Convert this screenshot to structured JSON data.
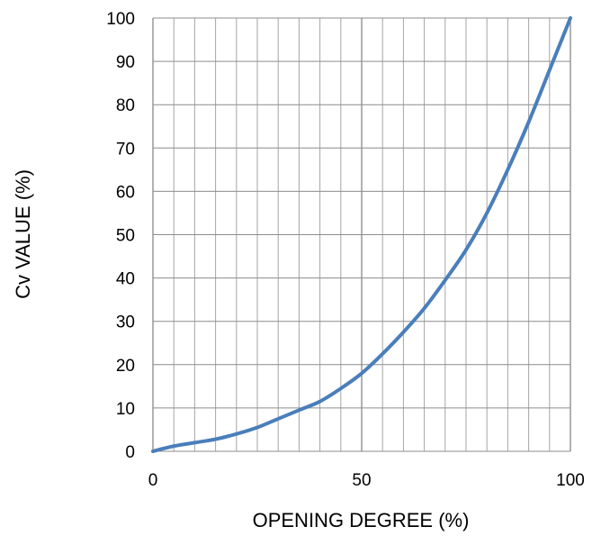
{
  "chart_data": {
    "type": "line",
    "title": "",
    "xlabel": "OPENING DEGREE  (%)",
    "ylabel": "Cv VALUE  (%)",
    "xlim": [
      0,
      100
    ],
    "ylim": [
      0,
      100
    ],
    "x_ticks": [
      0,
      50,
      100
    ],
    "y_ticks": [
      0,
      10,
      20,
      30,
      40,
      50,
      60,
      70,
      80,
      90,
      100
    ],
    "minor_grid_x_step": 5,
    "major_grid_x_step": 50,
    "grid_y_step": 10,
    "grid": true,
    "legend": "none",
    "series": [
      {
        "color": "#4a7ebb",
        "x": [
          0,
          5,
          10,
          15,
          20,
          25,
          30,
          35,
          40,
          45,
          50,
          55,
          60,
          65,
          70,
          75,
          80,
          85,
          90,
          95,
          100
        ],
        "y": [
          0,
          1.2,
          2,
          2.8,
          4,
          5.5,
          7.5,
          9.5,
          11.5,
          14.5,
          18,
          22.5,
          27.5,
          33,
          39.5,
          46.5,
          55,
          65,
          76,
          88,
          100
        ]
      }
    ]
  }
}
